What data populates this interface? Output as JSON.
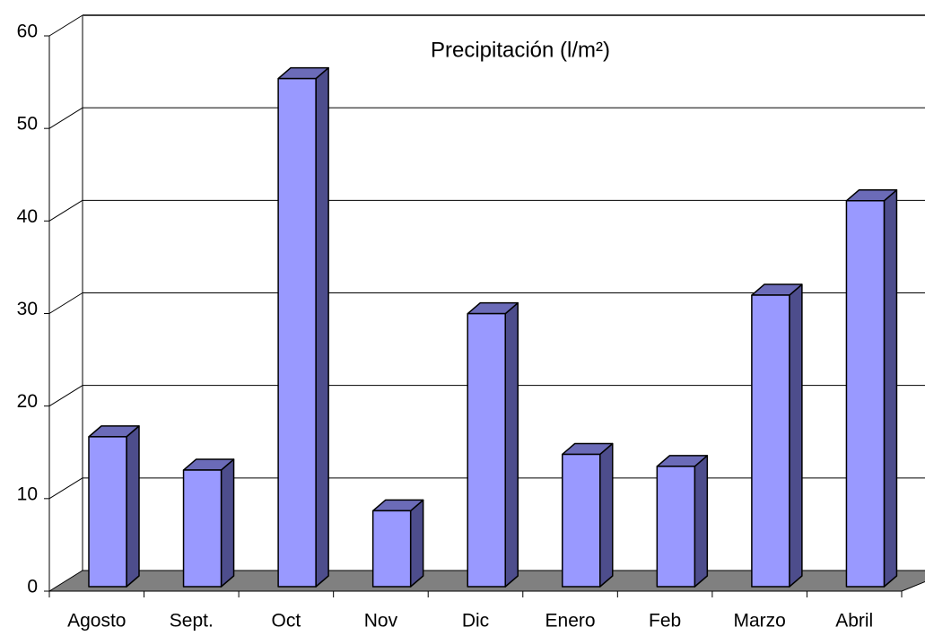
{
  "chart_data": {
    "type": "bar3d",
    "title": "Precipitación (l/m²)",
    "categories": [
      "Agosto",
      "Sept.",
      "Oct",
      "Nov",
      "Dic",
      "Enero",
      "Feb",
      "Marzo",
      "Abril"
    ],
    "values": [
      16.2,
      12.6,
      54.9,
      8.2,
      29.5,
      14.3,
      13.0,
      31.5,
      41.7
    ],
    "color": "#9999ff",
    "ylim": [
      0,
      60
    ],
    "yticks": [
      0,
      10,
      20,
      30,
      40,
      50,
      60
    ],
    "grid": true
  }
}
